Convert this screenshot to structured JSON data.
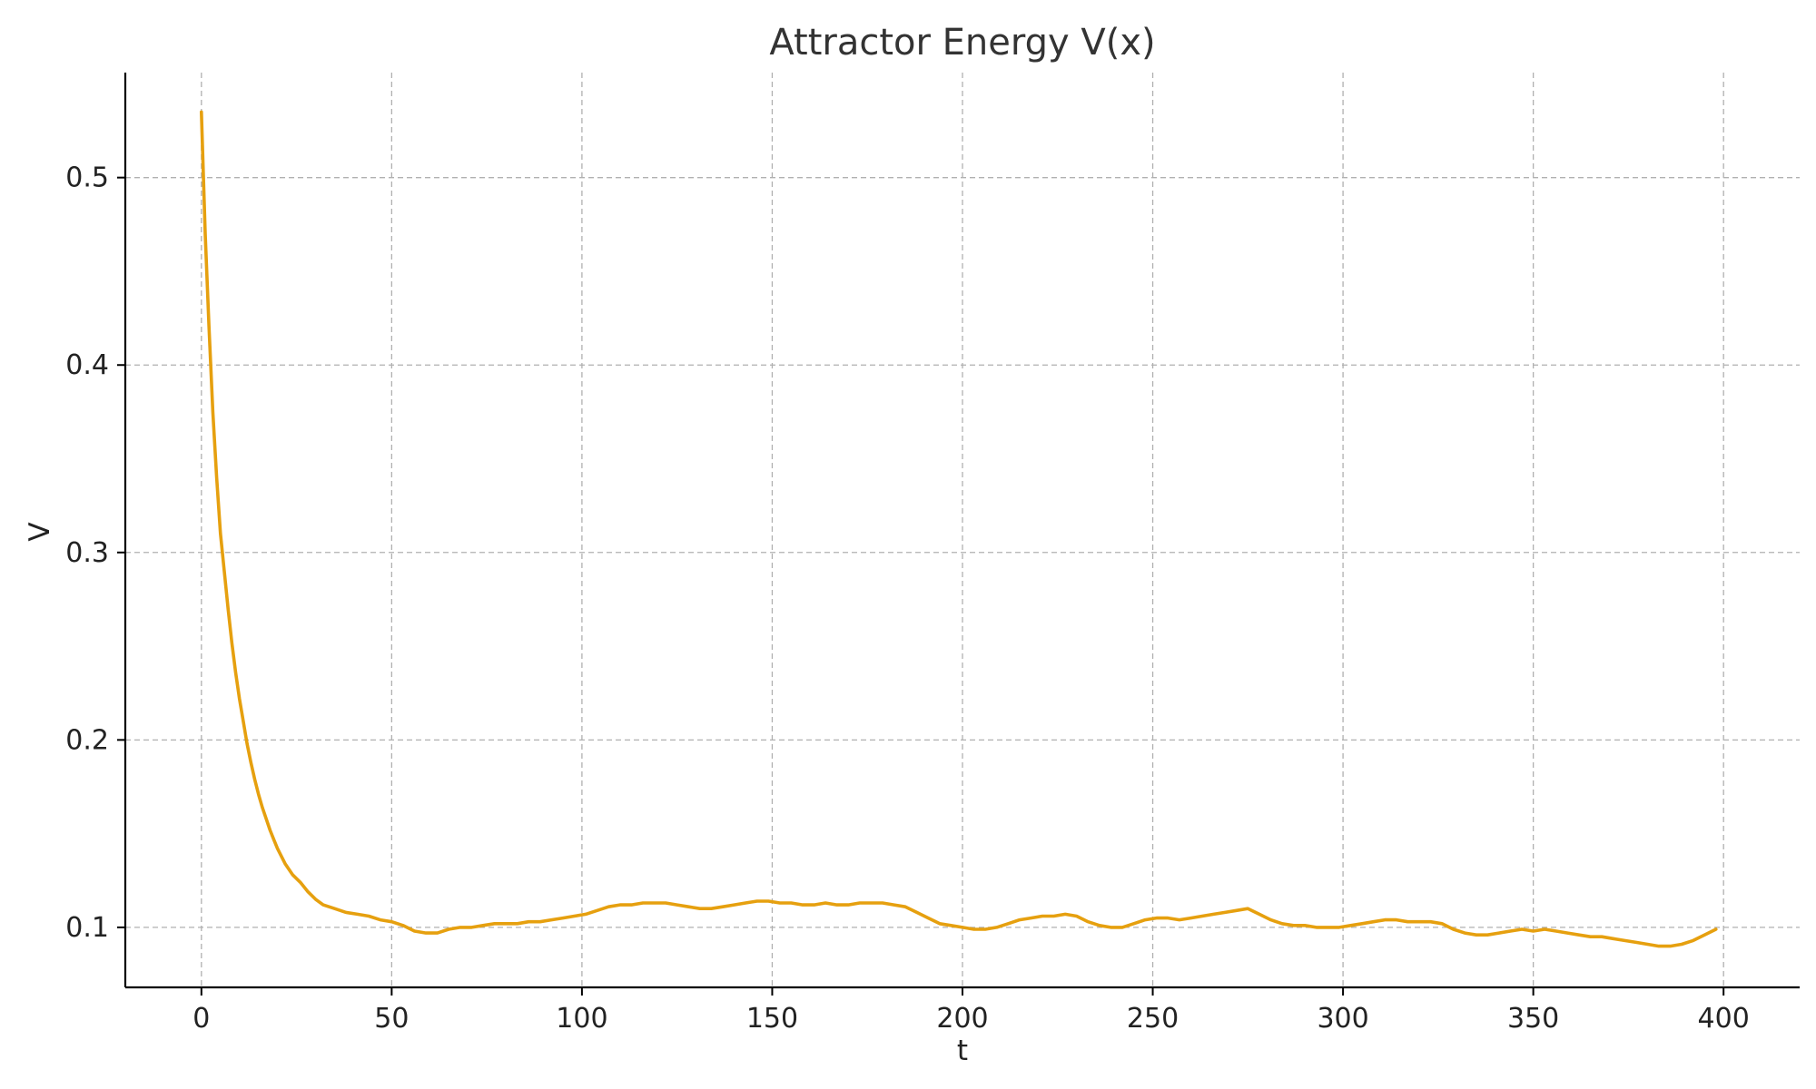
{
  "chart_data": {
    "type": "line",
    "title": "Attractor Energy V(x)",
    "xlabel": "t",
    "ylabel": "V",
    "xlim": [
      -20,
      420
    ],
    "ylim": [
      0.068,
      0.556
    ],
    "xticks": [
      0,
      50,
      100,
      150,
      200,
      250,
      300,
      350,
      400
    ],
    "xtick_labels": [
      "0",
      "50",
      "100",
      "150",
      "200",
      "250",
      "300",
      "350",
      "400"
    ],
    "yticks": [
      0.1,
      0.2,
      0.3,
      0.4,
      0.5
    ],
    "ytick_labels": [
      "0.1",
      "0.2",
      "0.3",
      "0.4",
      "0.5"
    ],
    "grid": true,
    "series": [
      {
        "color": "#E6A00F",
        "x": [
          0,
          1,
          2,
          3,
          4,
          5,
          6,
          7,
          8,
          9,
          10,
          11,
          12,
          13,
          14,
          15,
          16,
          17,
          18,
          19,
          20,
          22,
          24,
          26,
          28,
          30,
          32,
          35,
          38,
          41,
          44,
          47,
          50,
          53,
          56,
          59,
          62,
          65,
          68,
          71,
          74,
          77,
          80,
          83,
          86,
          89,
          92,
          95,
          98,
          101,
          104,
          107,
          110,
          113,
          116,
          119,
          122,
          125,
          128,
          131,
          134,
          137,
          140,
          143,
          146,
          149,
          152,
          155,
          158,
          161,
          164,
          167,
          170,
          173,
          176,
          179,
          182,
          185,
          188,
          191,
          194,
          197,
          200,
          203,
          206,
          209,
          212,
          215,
          218,
          221,
          224,
          227,
          230,
          233,
          236,
          239,
          242,
          245,
          248,
          251,
          254,
          257,
          260,
          263,
          266,
          269,
          272,
          275,
          278,
          281,
          284,
          287,
          290,
          293,
          296,
          299,
          302,
          305,
          308,
          311,
          314,
          317,
          320,
          323,
          326,
          329,
          332,
          335,
          338,
          341,
          344,
          347,
          350,
          353,
          356,
          359,
          362,
          365,
          368,
          371,
          374,
          377,
          380,
          383,
          386,
          389,
          392,
          395,
          398
        ],
        "y": [
          0.535,
          0.47,
          0.42,
          0.375,
          0.34,
          0.31,
          0.29,
          0.27,
          0.252,
          0.236,
          0.222,
          0.21,
          0.198,
          0.188,
          0.179,
          0.171,
          0.164,
          0.158,
          0.152,
          0.147,
          0.142,
          0.134,
          0.128,
          0.124,
          0.119,
          0.115,
          0.112,
          0.11,
          0.108,
          0.107,
          0.106,
          0.104,
          0.103,
          0.101,
          0.098,
          0.097,
          0.097,
          0.099,
          0.1,
          0.1,
          0.101,
          0.102,
          0.102,
          0.102,
          0.103,
          0.103,
          0.104,
          0.105,
          0.106,
          0.107,
          0.109,
          0.111,
          0.112,
          0.112,
          0.113,
          0.113,
          0.113,
          0.112,
          0.111,
          0.11,
          0.11,
          0.111,
          0.112,
          0.113,
          0.114,
          0.114,
          0.113,
          0.113,
          0.112,
          0.112,
          0.113,
          0.112,
          0.112,
          0.113,
          0.113,
          0.113,
          0.112,
          0.111,
          0.108,
          0.105,
          0.102,
          0.101,
          0.1,
          0.099,
          0.099,
          0.1,
          0.102,
          0.104,
          0.105,
          0.106,
          0.106,
          0.107,
          0.106,
          0.103,
          0.101,
          0.1,
          0.1,
          0.102,
          0.104,
          0.105,
          0.105,
          0.104,
          0.105,
          0.106,
          0.107,
          0.108,
          0.109,
          0.11,
          0.107,
          0.104,
          0.102,
          0.101,
          0.101,
          0.1,
          0.1,
          0.1,
          0.101,
          0.102,
          0.103,
          0.104,
          0.104,
          0.103,
          0.103,
          0.103,
          0.102,
          0.099,
          0.097,
          0.096,
          0.096,
          0.097,
          0.098,
          0.099,
          0.098,
          0.099,
          0.098,
          0.097,
          0.096,
          0.095,
          0.095,
          0.094,
          0.093,
          0.092,
          0.091,
          0.09,
          0.09,
          0.091,
          0.093,
          0.096,
          0.099
        ]
      }
    ]
  }
}
